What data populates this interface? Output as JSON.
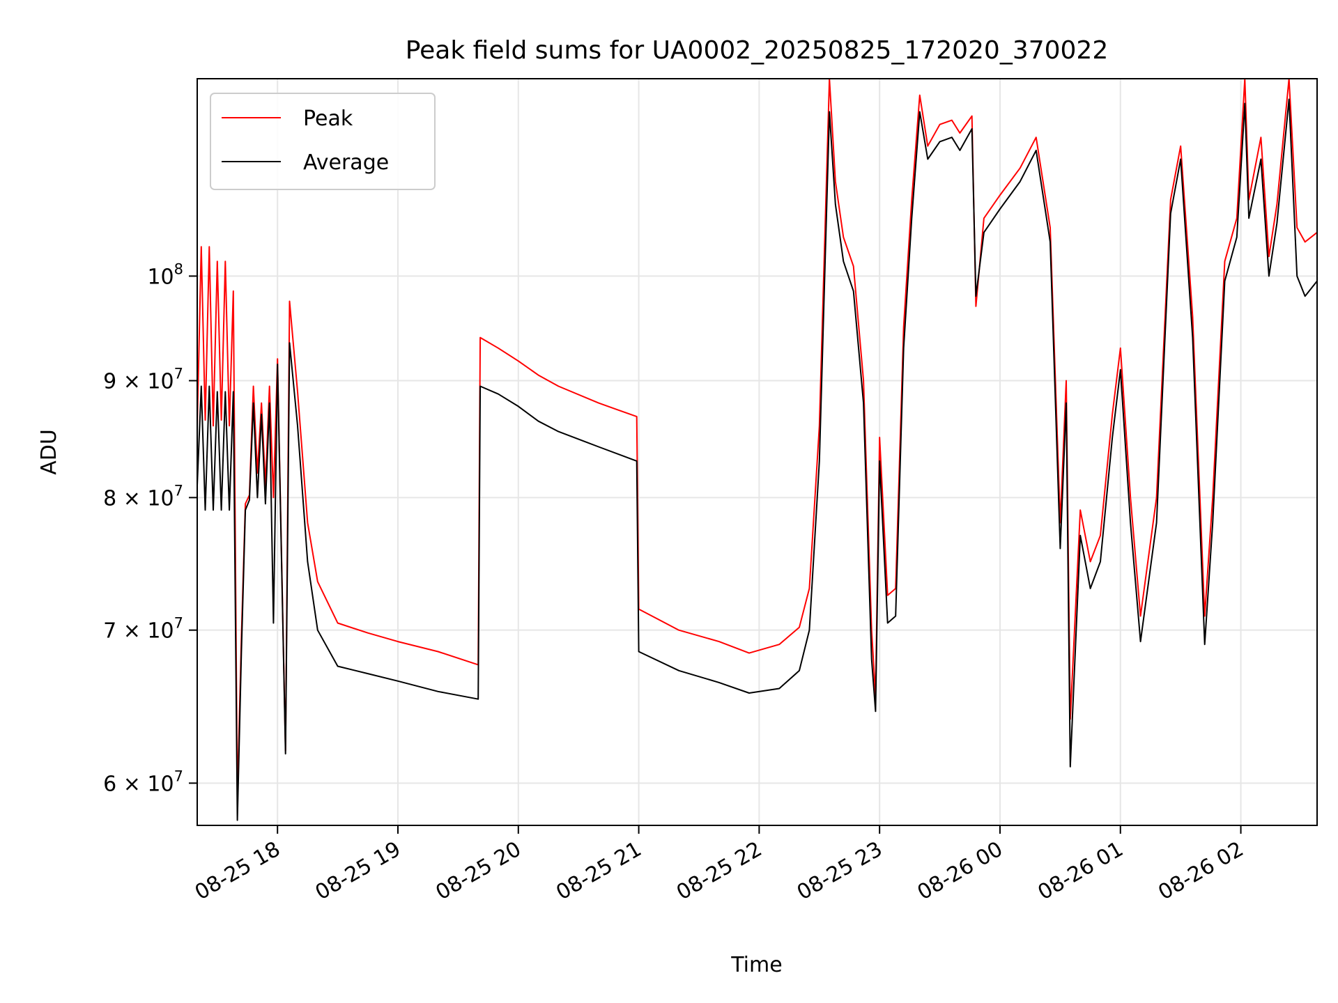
{
  "chart_data": {
    "type": "line",
    "title": "Peak field sums for UA0002_20250825_172020_370022",
    "xlabel": "Time",
    "ylabel": "ADU",
    "yscale": "log",
    "grid": true,
    "legend": {
      "placement": "upper-left",
      "entries": [
        "Peak",
        "Average"
      ]
    },
    "xlim": [
      "2025-08-25 17:20",
      "2025-08-26 02:38"
    ],
    "ylim": [
      57500000,
      122000000
    ],
    "x_ticks": [
      {
        "value": "2025-08-25 18:00",
        "label": "08-25 18"
      },
      {
        "value": "2025-08-25 19:00",
        "label": "08-25 19"
      },
      {
        "value": "2025-08-25 20:00",
        "label": "08-25 20"
      },
      {
        "value": "2025-08-25 21:00",
        "label": "08-25 21"
      },
      {
        "value": "2025-08-25 22:00",
        "label": "08-25 22"
      },
      {
        "value": "2025-08-25 23:00",
        "label": "08-25 23"
      },
      {
        "value": "2025-08-26 00:00",
        "label": "08-26 00"
      },
      {
        "value": "2025-08-26 01:00",
        "label": "08-26 01"
      },
      {
        "value": "2025-08-26 02:00",
        "label": "08-26 02"
      }
    ],
    "y_ticks": [
      {
        "value": 60000000,
        "label": "6 × 10",
        "exp": "7"
      },
      {
        "value": 70000000,
        "label": "7 × 10",
        "exp": "7"
      },
      {
        "value": 80000000,
        "label": "8 × 10",
        "exp": "7"
      },
      {
        "value": 90000000,
        "label": "9 × 10",
        "exp": "7"
      },
      {
        "value": 100000000,
        "label": "10",
        "exp": "8"
      }
    ],
    "series": [
      {
        "name": "Peak",
        "color": "#ff0000",
        "points": [
          [
            "2025-08-25 17:20",
            86000000
          ],
          [
            "2025-08-25 17:22",
            103000000
          ],
          [
            "2025-08-25 17:24",
            86500000
          ],
          [
            "2025-08-25 17:26",
            103000000
          ],
          [
            "2025-08-25 17:28",
            86000000
          ],
          [
            "2025-08-25 17:30",
            101500000
          ],
          [
            "2025-08-25 17:32",
            86500000
          ],
          [
            "2025-08-25 17:34",
            101500000
          ],
          [
            "2025-08-25 17:36",
            86000000
          ],
          [
            "2025-08-25 17:38",
            98500000
          ],
          [
            "2025-08-25 17:40",
            59000000
          ],
          [
            "2025-08-25 17:42",
            69500000
          ],
          [
            "2025-08-25 17:44",
            79500000
          ],
          [
            "2025-08-25 17:46",
            80200000
          ],
          [
            "2025-08-25 17:48",
            89500000
          ],
          [
            "2025-08-25 17:50",
            82000000
          ],
          [
            "2025-08-25 17:52",
            88000000
          ],
          [
            "2025-08-25 17:54",
            81000000
          ],
          [
            "2025-08-25 17:56",
            89500000
          ],
          [
            "2025-08-25 17:58",
            80000000
          ],
          [
            "2025-08-25 18:00",
            92000000
          ],
          [
            "2025-08-25 18:04",
            62000000
          ],
          [
            "2025-08-25 18:06",
            97500000
          ],
          [
            "2025-08-25 18:10",
            89000000
          ],
          [
            "2025-08-25 18:15",
            78000000
          ],
          [
            "2025-08-25 18:20",
            73500000
          ],
          [
            "2025-08-25 18:30",
            70500000
          ],
          [
            "2025-08-25 18:45",
            69800000
          ],
          [
            "2025-08-25 19:00",
            69200000
          ],
          [
            "2025-08-25 19:20",
            68500000
          ],
          [
            "2025-08-25 19:40",
            67600000
          ],
          [
            "2025-08-25 19:41",
            94000000
          ],
          [
            "2025-08-25 19:50",
            93000000
          ],
          [
            "2025-08-25 20:00",
            91800000
          ],
          [
            "2025-08-25 20:10",
            90500000
          ],
          [
            "2025-08-25 20:20",
            89500000
          ],
          [
            "2025-08-25 20:40",
            88000000
          ],
          [
            "2025-08-25 20:59",
            86800000
          ],
          [
            "2025-08-25 21:00",
            71500000
          ],
          [
            "2025-08-25 21:20",
            70000000
          ],
          [
            "2025-08-25 21:40",
            69200000
          ],
          [
            "2025-08-25 21:55",
            68400000
          ],
          [
            "2025-08-25 22:10",
            69000000
          ],
          [
            "2025-08-25 22:20",
            70200000
          ],
          [
            "2025-08-25 22:25",
            73000000
          ],
          [
            "2025-08-25 22:30",
            86000000
          ],
          [
            "2025-08-25 22:35",
            122000000
          ],
          [
            "2025-08-25 22:38",
            110000000
          ],
          [
            "2025-08-25 22:42",
            104000000
          ],
          [
            "2025-08-25 22:47",
            101000000
          ],
          [
            "2025-08-25 22:52",
            90000000
          ],
          [
            "2025-08-25 22:56",
            70000000
          ],
          [
            "2025-08-25 22:58",
            65500000
          ],
          [
            "2025-08-25 23:00",
            85000000
          ],
          [
            "2025-08-25 23:04",
            72500000
          ],
          [
            "2025-08-25 23:08",
            73000000
          ],
          [
            "2025-08-25 23:12",
            95000000
          ],
          [
            "2025-08-25 23:16",
            108000000
          ],
          [
            "2025-08-25 23:20",
            120000000
          ],
          [
            "2025-08-25 23:24",
            114000000
          ],
          [
            "2025-08-25 23:30",
            116500000
          ],
          [
            "2025-08-25 23:36",
            117000000
          ],
          [
            "2025-08-25 23:40",
            115500000
          ],
          [
            "2025-08-25 23:46",
            117500000
          ],
          [
            "2025-08-25 23:48",
            97000000
          ],
          [
            "2025-08-25 23:52",
            106000000
          ],
          [
            "2025-08-26 00:00",
            108500000
          ],
          [
            "2025-08-26 00:10",
            111500000
          ],
          [
            "2025-08-26 00:18",
            115000000
          ],
          [
            "2025-08-26 00:25",
            105000000
          ],
          [
            "2025-08-26 00:30",
            78000000
          ],
          [
            "2025-08-26 00:33",
            90000000
          ],
          [
            "2025-08-26 00:35",
            64000000
          ],
          [
            "2025-08-26 00:40",
            79000000
          ],
          [
            "2025-08-26 00:45",
            75000000
          ],
          [
            "2025-08-26 00:50",
            77000000
          ],
          [
            "2025-08-26 00:56",
            87000000
          ],
          [
            "2025-08-26 01:00",
            93000000
          ],
          [
            "2025-08-26 01:05",
            80000000
          ],
          [
            "2025-08-26 01:10",
            71000000
          ],
          [
            "2025-08-26 01:18",
            80000000
          ],
          [
            "2025-08-26 01:25",
            108000000
          ],
          [
            "2025-08-26 01:30",
            114000000
          ],
          [
            "2025-08-26 01:36",
            96000000
          ],
          [
            "2025-08-26 01:42",
            71000000
          ],
          [
            "2025-08-26 01:46",
            80000000
          ],
          [
            "2025-08-26 01:52",
            101500000
          ],
          [
            "2025-08-26 01:58",
            106000000
          ],
          [
            "2025-08-26 02:02",
            122000000
          ],
          [
            "2025-08-26 02:04",
            108000000
          ],
          [
            "2025-08-26 02:10",
            115000000
          ],
          [
            "2025-08-26 02:14",
            102000000
          ],
          [
            "2025-08-26 02:18",
            107500000
          ],
          [
            "2025-08-26 02:24",
            122000000
          ],
          [
            "2025-08-26 02:28",
            105000000
          ],
          [
            "2025-08-26 02:32",
            103500000
          ],
          [
            "2025-08-26 02:38",
            104500000
          ]
        ]
      },
      {
        "name": "Average",
        "color": "#000000",
        "points": [
          [
            "2025-08-25 17:20",
            81000000
          ],
          [
            "2025-08-25 17:22",
            89500000
          ],
          [
            "2025-08-25 17:24",
            79000000
          ],
          [
            "2025-08-25 17:26",
            89500000
          ],
          [
            "2025-08-25 17:28",
            79000000
          ],
          [
            "2025-08-25 17:30",
            89000000
          ],
          [
            "2025-08-25 17:32",
            79000000
          ],
          [
            "2025-08-25 17:34",
            89000000
          ],
          [
            "2025-08-25 17:36",
            79000000
          ],
          [
            "2025-08-25 17:38",
            89000000
          ],
          [
            "2025-08-25 17:40",
            57800000
          ],
          [
            "2025-08-25 17:42",
            68500000
          ],
          [
            "2025-08-25 17:44",
            79000000
          ],
          [
            "2025-08-25 17:46",
            79800000
          ],
          [
            "2025-08-25 17:48",
            88000000
          ],
          [
            "2025-08-25 17:50",
            80000000
          ],
          [
            "2025-08-25 17:52",
            87000000
          ],
          [
            "2025-08-25 17:54",
            79500000
          ],
          [
            "2025-08-25 17:56",
            88000000
          ],
          [
            "2025-08-25 17:58",
            70500000
          ],
          [
            "2025-08-25 18:00",
            91500000
          ],
          [
            "2025-08-25 18:04",
            61800000
          ],
          [
            "2025-08-25 18:06",
            93500000
          ],
          [
            "2025-08-25 18:10",
            86000000
          ],
          [
            "2025-08-25 18:15",
            75000000
          ],
          [
            "2025-08-25 18:20",
            70000000
          ],
          [
            "2025-08-25 18:30",
            67500000
          ],
          [
            "2025-08-25 18:45",
            67000000
          ],
          [
            "2025-08-25 19:00",
            66500000
          ],
          [
            "2025-08-25 19:20",
            65800000
          ],
          [
            "2025-08-25 19:40",
            65300000
          ],
          [
            "2025-08-25 19:41",
            89500000
          ],
          [
            "2025-08-25 19:50",
            88800000
          ],
          [
            "2025-08-25 20:00",
            87700000
          ],
          [
            "2025-08-25 20:10",
            86400000
          ],
          [
            "2025-08-25 20:20",
            85500000
          ],
          [
            "2025-08-25 20:40",
            84200000
          ],
          [
            "2025-08-25 20:59",
            83000000
          ],
          [
            "2025-08-25 21:00",
            68500000
          ],
          [
            "2025-08-25 21:20",
            67200000
          ],
          [
            "2025-08-25 21:40",
            66400000
          ],
          [
            "2025-08-25 21:55",
            65700000
          ],
          [
            "2025-08-25 22:10",
            66000000
          ],
          [
            "2025-08-25 22:20",
            67200000
          ],
          [
            "2025-08-25 22:25",
            70000000
          ],
          [
            "2025-08-25 22:30",
            83000000
          ],
          [
            "2025-08-25 22:35",
            118000000
          ],
          [
            "2025-08-25 22:38",
            107500000
          ],
          [
            "2025-08-25 22:42",
            101500000
          ],
          [
            "2025-08-25 22:47",
            98500000
          ],
          [
            "2025-08-25 22:52",
            88000000
          ],
          [
            "2025-08-25 22:56",
            68000000
          ],
          [
            "2025-08-25 22:58",
            64500000
          ],
          [
            "2025-08-25 23:00",
            83000000
          ],
          [
            "2025-08-25 23:04",
            70500000
          ],
          [
            "2025-08-25 23:08",
            71000000
          ],
          [
            "2025-08-25 23:12",
            93000000
          ],
          [
            "2025-08-25 23:16",
            106000000
          ],
          [
            "2025-08-25 23:20",
            118000000
          ],
          [
            "2025-08-25 23:24",
            112500000
          ],
          [
            "2025-08-25 23:30",
            114500000
          ],
          [
            "2025-08-25 23:36",
            115000000
          ],
          [
            "2025-08-25 23:40",
            113500000
          ],
          [
            "2025-08-25 23:46",
            116000000
          ],
          [
            "2025-08-25 23:48",
            98000000
          ],
          [
            "2025-08-25 23:52",
            104500000
          ],
          [
            "2025-08-26 00:00",
            107000000
          ],
          [
            "2025-08-26 00:10",
            110000000
          ],
          [
            "2025-08-26 00:18",
            113500000
          ],
          [
            "2025-08-26 00:25",
            103500000
          ],
          [
            "2025-08-26 00:30",
            76000000
          ],
          [
            "2025-08-26 00:33",
            88000000
          ],
          [
            "2025-08-26 00:35",
            61000000
          ],
          [
            "2025-08-26 00:40",
            77000000
          ],
          [
            "2025-08-26 00:45",
            73000000
          ],
          [
            "2025-08-26 00:50",
            75000000
          ],
          [
            "2025-08-26 00:56",
            85000000
          ],
          [
            "2025-08-26 01:00",
            91000000
          ],
          [
            "2025-08-26 01:05",
            78000000
          ],
          [
            "2025-08-26 01:10",
            69200000
          ],
          [
            "2025-08-26 01:18",
            78000000
          ],
          [
            "2025-08-26 01:25",
            106500000
          ],
          [
            "2025-08-26 01:30",
            112500000
          ],
          [
            "2025-08-26 01:36",
            94000000
          ],
          [
            "2025-08-26 01:42",
            69000000
          ],
          [
            "2025-08-26 01:46",
            78000000
          ],
          [
            "2025-08-26 01:52",
            99500000
          ],
          [
            "2025-08-26 01:58",
            104000000
          ],
          [
            "2025-08-26 02:02",
            119000000
          ],
          [
            "2025-08-26 02:04",
            106000000
          ],
          [
            "2025-08-26 02:10",
            112500000
          ],
          [
            "2025-08-26 02:14",
            100000000
          ],
          [
            "2025-08-26 02:18",
            105500000
          ],
          [
            "2025-08-26 02:24",
            119500000
          ],
          [
            "2025-08-26 02:28",
            100000000
          ],
          [
            "2025-08-26 02:32",
            98000000
          ],
          [
            "2025-08-26 02:38",
            99500000
          ]
        ]
      }
    ]
  }
}
